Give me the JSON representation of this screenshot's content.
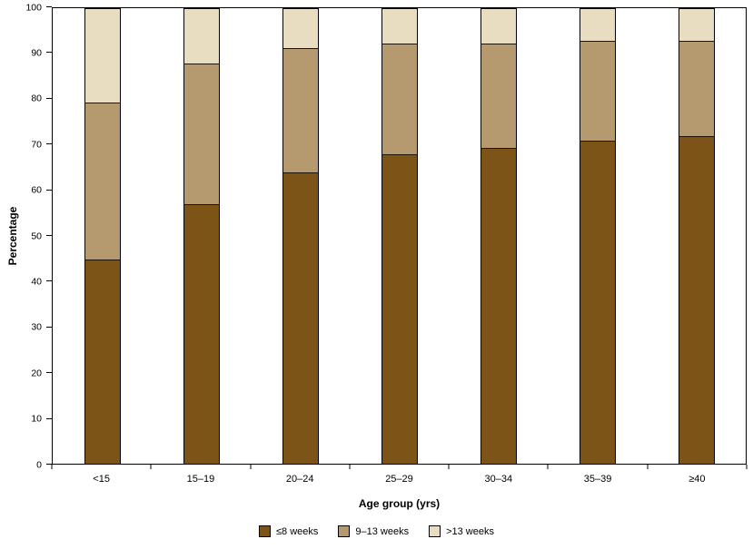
{
  "chart_data": {
    "type": "bar",
    "stacked": true,
    "categories": [
      "<15",
      "15–19",
      "20–24",
      "25–29",
      "30–34",
      "35–39",
      "≥40"
    ],
    "series": [
      {
        "name": "≤8 weeks",
        "color": "#7d5418",
        "values": [
          45,
          57,
          64,
          68,
          69.5,
          71,
          72
        ]
      },
      {
        "name": "9–13 weeks",
        "color": "#b5996f",
        "values": [
          34.5,
          31,
          27.5,
          24.5,
          23,
          22,
          21
        ]
      },
      {
        "name": ">13 weeks",
        "color": "#e8dcc1",
        "values": [
          20.5,
          12,
          8.5,
          7.5,
          7.5,
          7,
          7
        ]
      }
    ],
    "xlabel": "Age group (yrs)",
    "ylabel": "Percentage",
    "ylim": [
      0,
      100
    ],
    "yticks": [
      0,
      10,
      20,
      30,
      40,
      50,
      60,
      70,
      80,
      90,
      100
    ],
    "grid": false,
    "legend_position": "bottom",
    "frame_color": "#000000",
    "separator_color": "#1c1307"
  }
}
